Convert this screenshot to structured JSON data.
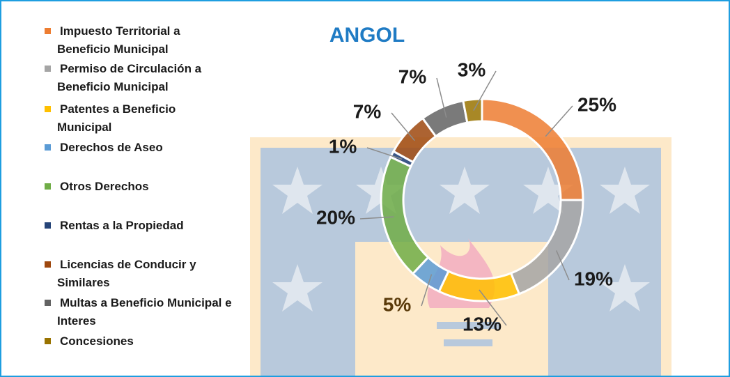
{
  "chart_data": {
    "type": "donut",
    "title": "ANGOL",
    "categories": [
      "Impuesto Territorial a Beneficio Municipal",
      "Permiso de Circulación a Beneficio Municipal",
      "Patentes a Beneficio Municipal",
      "Derechos de Aseo",
      "Otros Derechos",
      "Rentas a la Propiedad",
      "Licencias de Conducir y Similares",
      "Multas a Beneficio Municipal e Interes",
      "Concesiones"
    ],
    "values": [
      25,
      19,
      13,
      5,
      20,
      1,
      7,
      7,
      3
    ],
    "value_labels": [
      "25%",
      "19%",
      "13%",
      "5%",
      "20%",
      "1%",
      "7%",
      "7%",
      "3%"
    ],
    "colors": [
      "#ed7d31",
      "#a5a5a5",
      "#ffc000",
      "#5b9bd5",
      "#70ad47",
      "#264478",
      "#9e480e",
      "#636363",
      "#997300"
    ],
    "legend": "left"
  }
}
